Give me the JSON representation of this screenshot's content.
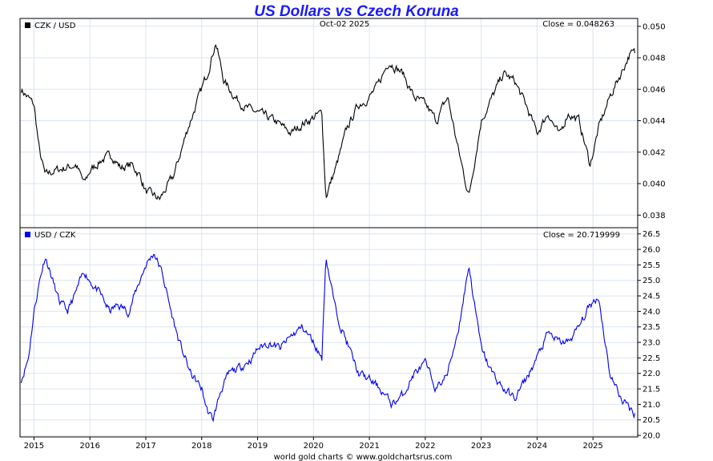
{
  "title": "US Dollars vs Czech Koruna",
  "date": "Oct-02  2025",
  "footer": "world gold charts © www.goldchartsrus.com",
  "colors": {
    "title": "#1a1aff",
    "czk_usd": "#000000",
    "usd_czk": "#0000ee",
    "grid": "#d9e4f0"
  },
  "chart_data": [
    {
      "type": "line",
      "series": [
        {
          "name": "CZK / USD"
        }
      ],
      "close_label": "Close = 0.048263",
      "ylim": [
        0.0372,
        0.0505
      ],
      "y_ticks": [
        "0.050",
        "0.048",
        "0.046",
        "0.044",
        "0.042",
        "0.040",
        "0.038"
      ],
      "x_ticks": [
        "2015",
        "2016",
        "2017",
        "2018",
        "2019",
        "2020",
        "2021",
        "2022",
        "2023",
        "2024",
        "2025"
      ],
      "x": [
        2014.77,
        2015.0,
        2015.1,
        2015.2,
        2015.35,
        2015.55,
        2015.75,
        2015.9,
        2016.0,
        2016.2,
        2016.4,
        2016.55,
        2016.75,
        2016.9,
        2017.0,
        2017.25,
        2017.5,
        2017.75,
        2017.95,
        2018.1,
        2018.25,
        2018.4,
        2018.6,
        2018.8,
        2019.0,
        2019.3,
        2019.6,
        2019.8,
        2020.0,
        2020.15,
        2020.22,
        2020.4,
        2020.6,
        2020.8,
        2021.0,
        2021.15,
        2021.35,
        2021.6,
        2021.8,
        2022.0,
        2022.2,
        2022.4,
        2022.6,
        2022.78,
        2023.0,
        2023.2,
        2023.4,
        2023.6,
        2023.8,
        2024.0,
        2024.2,
        2024.4,
        2024.55,
        2024.75,
        2024.95,
        2025.1,
        2025.3,
        2025.5,
        2025.65,
        2025.75
      ],
      "values": [
        0.046,
        0.045,
        0.042,
        0.0405,
        0.0408,
        0.041,
        0.0412,
        0.04,
        0.0408,
        0.0415,
        0.0418,
        0.041,
        0.0412,
        0.0405,
        0.0395,
        0.039,
        0.0405,
        0.0435,
        0.0455,
        0.047,
        0.049,
        0.0465,
        0.0455,
        0.0448,
        0.0445,
        0.044,
        0.0432,
        0.0438,
        0.0442,
        0.0445,
        0.0392,
        0.041,
        0.0435,
        0.045,
        0.0455,
        0.0462,
        0.0478,
        0.047,
        0.0455,
        0.045,
        0.044,
        0.0455,
        0.042,
        0.0392,
        0.044,
        0.0455,
        0.047,
        0.0465,
        0.045,
        0.0432,
        0.0445,
        0.043,
        0.0445,
        0.044,
        0.0412,
        0.0435,
        0.0455,
        0.047,
        0.0482,
        0.0483
      ]
    },
    {
      "type": "line",
      "series": [
        {
          "name": "USD / CZK"
        }
      ],
      "close_label": "Close = 20.719999",
      "ylim": [
        19.95,
        26.7
      ],
      "y_ticks": [
        "26.5",
        "26.0",
        "25.5",
        "25.0",
        "24.5",
        "24.0",
        "23.5",
        "23.0",
        "22.5",
        "22.0",
        "21.5",
        "21.0",
        "20.5",
        "20.0"
      ],
      "x_ticks": [
        "2015",
        "2016",
        "2017",
        "2018",
        "2019",
        "2020",
        "2021",
        "2022",
        "2023",
        "2024",
        "2025"
      ],
      "x": [
        2014.77,
        2014.9,
        2015.0,
        2015.1,
        2015.2,
        2015.3,
        2015.45,
        2015.6,
        2015.75,
        2015.9,
        2016.0,
        2016.2,
        2016.35,
        2016.5,
        2016.7,
        2016.85,
        2017.0,
        2017.15,
        2017.3,
        2017.45,
        2017.6,
        2017.8,
        2018.0,
        2018.1,
        2018.2,
        2018.35,
        2018.5,
        2018.7,
        2018.9,
        2019.0,
        2019.2,
        2019.4,
        2019.6,
        2019.8,
        2020.0,
        2020.15,
        2020.22,
        2020.4,
        2020.6,
        2020.8,
        2021.0,
        2021.2,
        2021.4,
        2021.6,
        2021.8,
        2022.0,
        2022.2,
        2022.4,
        2022.6,
        2022.78,
        2022.9,
        2023.0,
        2023.2,
        2023.4,
        2023.6,
        2023.8,
        2024.0,
        2024.2,
        2024.4,
        2024.55,
        2024.75,
        2024.95,
        2025.1,
        2025.3,
        2025.5,
        2025.65,
        2025.75
      ],
      "values": [
        21.8,
        22.5,
        24.0,
        25.0,
        25.8,
        25.2,
        24.3,
        24.0,
        24.6,
        25.3,
        25.0,
        24.5,
        24.0,
        24.2,
        24.0,
        24.8,
        25.5,
        25.9,
        25.2,
        24.0,
        23.0,
        22.0,
        21.5,
        20.8,
        20.5,
        21.5,
        22.0,
        22.2,
        22.5,
        22.8,
        23.0,
        22.8,
        23.2,
        23.5,
        23.0,
        22.5,
        25.8,
        24.0,
        23.0,
        22.0,
        21.8,
        21.5,
        21.0,
        21.3,
        22.0,
        22.3,
        21.5,
        22.0,
        23.5,
        25.5,
        24.0,
        22.8,
        22.0,
        21.5,
        21.2,
        21.8,
        22.5,
        23.3,
        23.0,
        23.0,
        23.5,
        24.2,
        24.5,
        22.0,
        21.2,
        20.9,
        20.72
      ]
    }
  ]
}
